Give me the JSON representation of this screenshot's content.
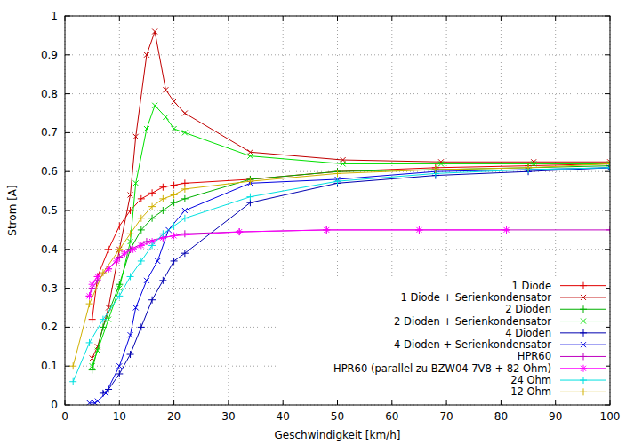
{
  "chart_data": {
    "type": "line",
    "x_label": "Geschwindigkeit [km/h]",
    "y_label": "Strom [A]",
    "xlim": [
      0,
      100
    ],
    "xticks": [
      0,
      10,
      20,
      30,
      40,
      50,
      60,
      70,
      80,
      90,
      100
    ],
    "ylim": [
      0,
      1
    ],
    "yticks": [
      0,
      0.1,
      0.2,
      0.3,
      0.4,
      0.5,
      0.6,
      0.7,
      0.8,
      0.9,
      1
    ],
    "grid": true,
    "legend": "bottom-right",
    "series": [
      {
        "name": "1 Diode",
        "color": "#e00000",
        "marker": "plus",
        "line_style": "solid",
        "x": [
          5,
          6,
          8,
          10,
          12,
          14,
          16,
          18,
          20,
          22,
          34,
          50,
          68,
          85,
          100
        ],
        "values": [
          0.22,
          0.33,
          0.4,
          0.46,
          0.5,
          0.53,
          0.545,
          0.56,
          0.565,
          0.57,
          0.58,
          0.6,
          0.61,
          0.615,
          0.62
        ]
      },
      {
        "name": "1 Diode + Serienkondensator",
        "color": "#c00000",
        "marker": "cross",
        "line_style": "solid",
        "x": [
          5,
          6,
          8,
          10,
          12,
          13,
          15,
          16.5,
          18.5,
          20,
          22,
          34,
          51,
          69,
          86,
          100
        ],
        "values": [
          0.12,
          0.15,
          0.25,
          0.4,
          0.54,
          0.69,
          0.9,
          0.96,
          0.81,
          0.78,
          0.75,
          0.65,
          0.63,
          0.625,
          0.625,
          0.625
        ]
      },
      {
        "name": "2 Dioden",
        "color": "#00b000",
        "marker": "plus",
        "line_style": "solid",
        "x": [
          5,
          7,
          10,
          12,
          14,
          16,
          18,
          20,
          22,
          34,
          50,
          68,
          85,
          100
        ],
        "values": [
          0.09,
          0.2,
          0.31,
          0.4,
          0.45,
          0.48,
          0.5,
          0.52,
          0.53,
          0.58,
          0.6,
          0.605,
          0.61,
          0.615
        ]
      },
      {
        "name": "2 Dioden + Serienkondensator",
        "color": "#00e000",
        "marker": "cross",
        "line_style": "solid",
        "x": [
          5,
          6,
          8,
          10,
          12,
          13,
          15,
          16.5,
          18.5,
          20,
          22,
          34,
          51,
          69,
          86,
          100
        ],
        "values": [
          0.1,
          0.14,
          0.22,
          0.3,
          0.42,
          0.57,
          0.71,
          0.77,
          0.74,
          0.71,
          0.7,
          0.64,
          0.62,
          0.62,
          0.62,
          0.62
        ]
      },
      {
        "name": "4 Dioden",
        "color": "#0000b0",
        "marker": "plus",
        "line_style": "solid",
        "x": [
          7,
          8,
          10,
          12,
          14,
          16,
          18,
          20,
          22,
          34,
          50,
          68,
          85,
          100
        ],
        "values": [
          0.03,
          0.04,
          0.08,
          0.13,
          0.2,
          0.27,
          0.32,
          0.37,
          0.39,
          0.52,
          0.57,
          0.59,
          0.6,
          0.61
        ]
      },
      {
        "name": "4 Dioden + Serienkondensator",
        "color": "#0000e0",
        "marker": "cross",
        "line_style": "solid",
        "x": [
          4.5,
          5.5,
          6,
          7.5,
          10,
          12,
          13,
          15,
          17,
          19,
          22,
          34,
          50,
          68,
          85,
          100
        ],
        "values": [
          0.005,
          0.005,
          0.01,
          0.03,
          0.1,
          0.18,
          0.25,
          0.32,
          0.37,
          0.45,
          0.5,
          0.57,
          0.58,
          0.6,
          0.605,
          0.61
        ]
      },
      {
        "name": "HPR60",
        "color": "#c000c0",
        "marker": "plus",
        "line_style": "solid",
        "x": [
          4.5,
          5,
          6,
          8,
          10,
          12,
          15,
          18,
          22,
          32,
          48,
          65,
          81,
          100
        ],
        "values": [
          0.28,
          0.3,
          0.32,
          0.35,
          0.38,
          0.4,
          0.42,
          0.43,
          0.44,
          0.445,
          0.45,
          0.45,
          0.45,
          0.45
        ]
      },
      {
        "name": "HPR60 (parallel zu BZW04 7V8 + 82 Ohm)",
        "color": "#ff00ff",
        "marker": "star",
        "line_style": "solid",
        "x": [
          4.5,
          5,
          6,
          8,
          9.5,
          11,
          12.5,
          14,
          16,
          18,
          20,
          32,
          48,
          65,
          81
        ],
        "values": [
          0.28,
          0.31,
          0.33,
          0.35,
          0.37,
          0.39,
          0.4,
          0.41,
          0.42,
          0.43,
          0.435,
          0.445,
          0.45,
          0.45,
          0.45
        ]
      },
      {
        "name": "24 Ohm",
        "color": "#00e0e0",
        "marker": "plus",
        "line_style": "solid",
        "x": [
          1.5,
          4.5,
          7,
          10,
          12,
          14,
          16,
          18,
          20,
          22,
          34,
          50,
          68,
          85,
          100
        ],
        "values": [
          0.06,
          0.16,
          0.22,
          0.28,
          0.33,
          0.37,
          0.41,
          0.44,
          0.46,
          0.48,
          0.535,
          0.575,
          0.595,
          0.605,
          0.61
        ]
      },
      {
        "name": "12 Ohm",
        "color": "#d0b000",
        "marker": "plus",
        "line_style": "solid",
        "x": [
          1.5,
          4.5,
          7,
          10,
          12,
          14,
          16,
          18,
          20,
          22,
          34,
          50,
          68,
          85,
          100
        ],
        "values": [
          0.1,
          0.26,
          0.34,
          0.4,
          0.44,
          0.48,
          0.51,
          0.53,
          0.54,
          0.555,
          0.575,
          0.595,
          0.605,
          0.61,
          0.62
        ]
      }
    ]
  }
}
